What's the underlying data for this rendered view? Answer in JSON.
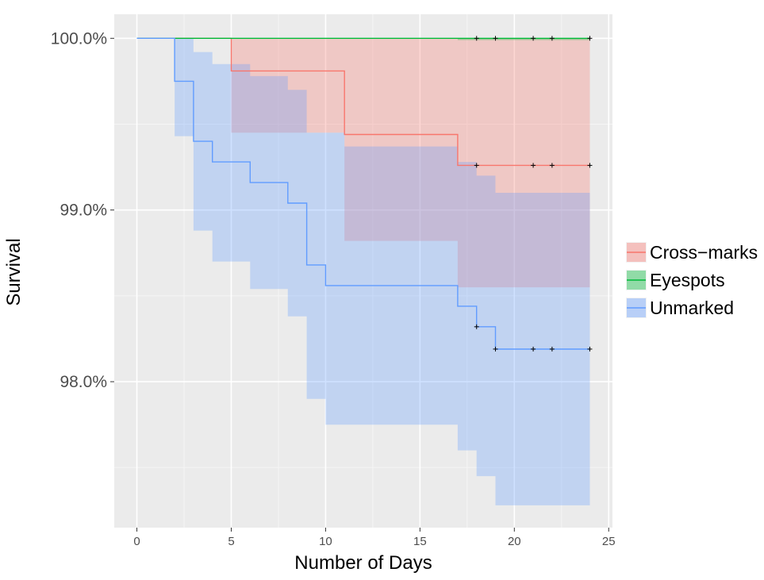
{
  "chart_data": {
    "type": "line",
    "xlabel": "Number of Days",
    "ylabel": "Survival",
    "xlim": [
      -1.2,
      25.2
    ],
    "ylim": [
      97.15,
      100.14
    ],
    "x_ticks": [
      0,
      5,
      10,
      15,
      20,
      25
    ],
    "x_tick_labels": [
      "0",
      "5",
      "10",
      "15",
      "20",
      "25"
    ],
    "y_ticks": [
      98.0,
      99.0,
      100.0
    ],
    "y_tick_labels": [
      "98.0%",
      "99.0%",
      "100.0%"
    ],
    "grid": true,
    "legend_position": "right",
    "series": [
      {
        "name": "Cross−marks",
        "color": "#F8766D",
        "fill": "#F8766D",
        "steps": [
          [
            0,
            100.0
          ],
          [
            5,
            99.81
          ],
          [
            11,
            99.44
          ],
          [
            17,
            99.26
          ],
          [
            24,
            99.26
          ]
        ],
        "ci_steps": [
          [
            5,
            99.45,
            100.0
          ],
          [
            11,
            98.82,
            100.0
          ],
          [
            17,
            98.55,
            100.0
          ],
          [
            18,
            98.55,
            100.0
          ],
          [
            19,
            98.55,
            100.0
          ],
          [
            24,
            98.55,
            100.0
          ]
        ],
        "censor_x": [
          18,
          21,
          22,
          24
        ]
      },
      {
        "name": "Eyespots",
        "color": "#00BA38",
        "fill": "#00BA38",
        "steps": [
          [
            0,
            100.0
          ],
          [
            24,
            100.0
          ]
        ],
        "ci_steps": [
          [
            0,
            100.0,
            100.0
          ],
          [
            17,
            99.99,
            100.0
          ],
          [
            24,
            99.99,
            100.0
          ]
        ],
        "censor_x": [
          18,
          19,
          21,
          22,
          24
        ]
      },
      {
        "name": "Unmarked",
        "color": "#619CFF",
        "fill": "#619CFF",
        "steps": [
          [
            0,
            100.0
          ],
          [
            2,
            99.75
          ],
          [
            3,
            99.4
          ],
          [
            4,
            99.28
          ],
          [
            6,
            99.16
          ],
          [
            8,
            99.04
          ],
          [
            9,
            98.68
          ],
          [
            10,
            98.56
          ],
          [
            17,
            98.44
          ],
          [
            18,
            98.32
          ],
          [
            19,
            98.19
          ],
          [
            24,
            98.19
          ]
        ],
        "ci_steps": [
          [
            2,
            99.43,
            100.0
          ],
          [
            3,
            98.88,
            99.92
          ],
          [
            4,
            98.7,
            99.85
          ],
          [
            5,
            98.7,
            99.85
          ],
          [
            6,
            98.54,
            99.78
          ],
          [
            8,
            98.38,
            99.7
          ],
          [
            9,
            97.9,
            99.45
          ],
          [
            10,
            97.75,
            99.45
          ],
          [
            11,
            97.75,
            99.37
          ],
          [
            17,
            97.6,
            99.28
          ],
          [
            18,
            97.45,
            99.2
          ],
          [
            19,
            97.28,
            99.1
          ],
          [
            24,
            97.28,
            99.1
          ]
        ],
        "censor_x": [
          18,
          19,
          21,
          22,
          24
        ]
      }
    ]
  }
}
